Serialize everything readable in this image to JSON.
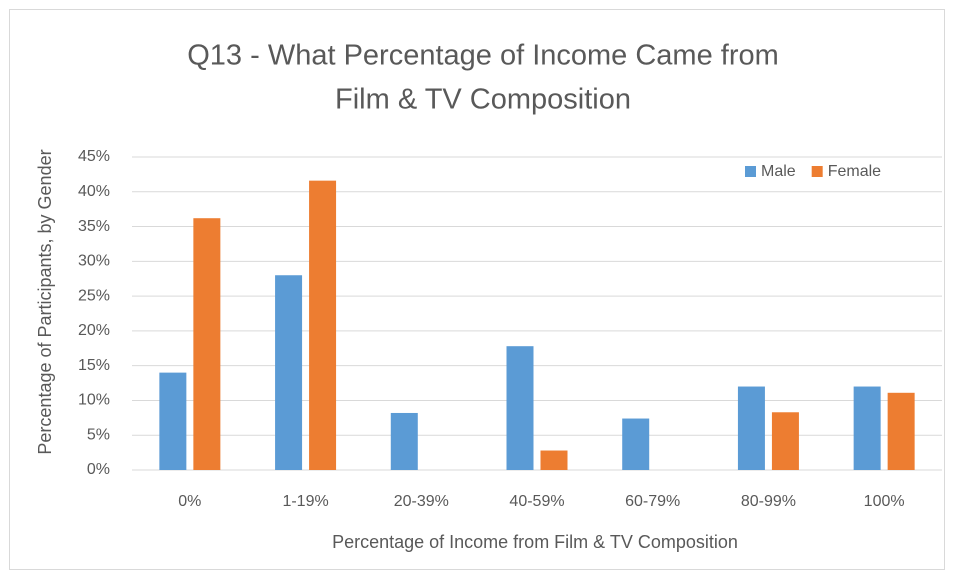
{
  "chart_data": {
    "type": "bar",
    "title": [
      "Q13 - What Percentage of Income Came from",
      "Film & TV Composition"
    ],
    "x_label": "Percentage of Income from Film & TV Composition",
    "y_label": "Percentage of Participants, by Gender",
    "categories": [
      "0%",
      "1-19%",
      "20-39%",
      "40-59%",
      "60-79%",
      "80-99%",
      "100%"
    ],
    "series": [
      {
        "name": "Male",
        "color": "#5b9bd5",
        "values": [
          14,
          28,
          8.2,
          17.8,
          7.4,
          12,
          12
        ]
      },
      {
        "name": "Female",
        "color": "#ed7d31",
        "values": [
          36.2,
          41.6,
          0,
          2.8,
          0,
          8.3,
          11.1
        ]
      }
    ],
    "ylim": [
      0,
      45
    ],
    "yticks": [
      {
        "value": 0,
        "label": "0%"
      },
      {
        "value": 5,
        "label": "5%"
      },
      {
        "value": 10,
        "label": "10%"
      },
      {
        "value": 15,
        "label": "15%"
      },
      {
        "value": 20,
        "label": "20%"
      },
      {
        "value": 25,
        "label": "25%"
      },
      {
        "value": 30,
        "label": "30%"
      },
      {
        "value": 35,
        "label": "35%"
      },
      {
        "value": 40,
        "label": "40%"
      },
      {
        "value": 45,
        "label": "45%"
      }
    ],
    "grid": true,
    "legend": "upper right"
  }
}
